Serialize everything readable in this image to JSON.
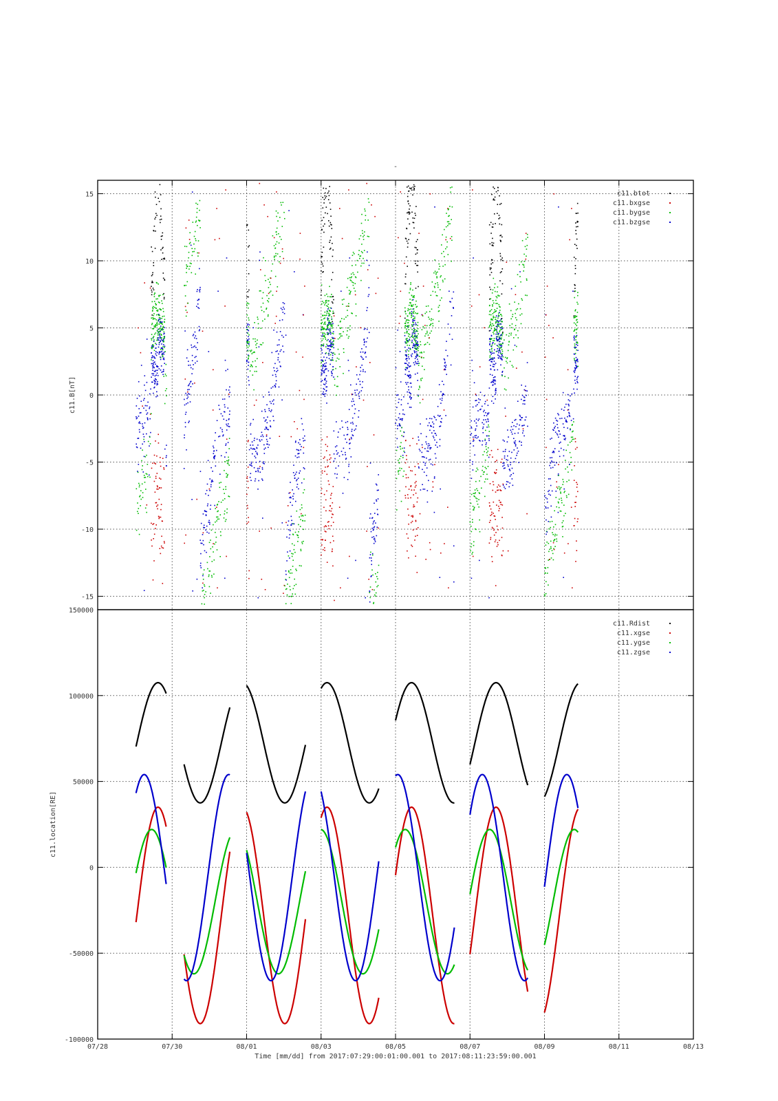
{
  "figure": {
    "title": "-",
    "xlabel": "Time [mm/dd]  from 2017:07:29:00:01:00.001  to  2017:08:11:23:59:00.001"
  },
  "chart_data": [
    {
      "type": "scatter",
      "title": "",
      "xlabel": "",
      "ylabel": "c11.B[nT]",
      "x_unit": "days since 07/28",
      "xlim": [
        0,
        16
      ],
      "ylim": [
        -16,
        16
      ],
      "yticks": [
        -15,
        -10,
        -5,
        0,
        5,
        10,
        15
      ],
      "grid": true,
      "legend_position": "top-right",
      "series": [
        {
          "name": "c11.btot",
          "color": "#000000"
        },
        {
          "name": "c11.bxgse",
          "color": "#cc0000"
        },
        {
          "name": "c11.bygse",
          "color": "#00bb00"
        },
        {
          "name": "c11.bzgse",
          "color": "#0000cc"
        }
      ]
    },
    {
      "type": "line",
      "title": "",
      "xlabel": "",
      "ylabel": "c11.location[RE]",
      "xlim": [
        0,
        16
      ],
      "ylim": [
        -100000,
        150000
      ],
      "yticks": [
        -100000,
        -50000,
        0,
        50000,
        100000,
        150000
      ],
      "xticks": [
        "07/28",
        "07/30",
        "08/01",
        "08/03",
        "08/05",
        "08/07",
        "08/09",
        "08/11",
        "08/13"
      ],
      "grid": true,
      "legend_position": "top-right",
      "orbit_period_days": 2.27,
      "series": [
        {
          "name": "c11.Rdist",
          "color": "#000000",
          "mean": 72500,
          "amplitude": 35000,
          "phase_day": 1.62
        },
        {
          "name": "c11.xgse",
          "color": "#cc0000",
          "mean": -28000,
          "amplitude": 63000,
          "phase_day": 1.62
        },
        {
          "name": "c11.ygse",
          "color": "#00bb00",
          "mean": -20000,
          "amplitude": 42000,
          "phase_day": 1.45
        },
        {
          "name": "c11.zgse",
          "color": "#0000cc",
          "mean": -6000,
          "amplitude": 60000,
          "phase_day": 1.25
        }
      ],
      "data_segments": [
        [
          1.03,
          1.85
        ],
        [
          2.32,
          3.55
        ],
        [
          4.0,
          5.58
        ],
        [
          6.0,
          7.55
        ],
        [
          8.0,
          9.58
        ],
        [
          10.0,
          11.55
        ],
        [
          12.0,
          12.9
        ]
      ]
    }
  ]
}
